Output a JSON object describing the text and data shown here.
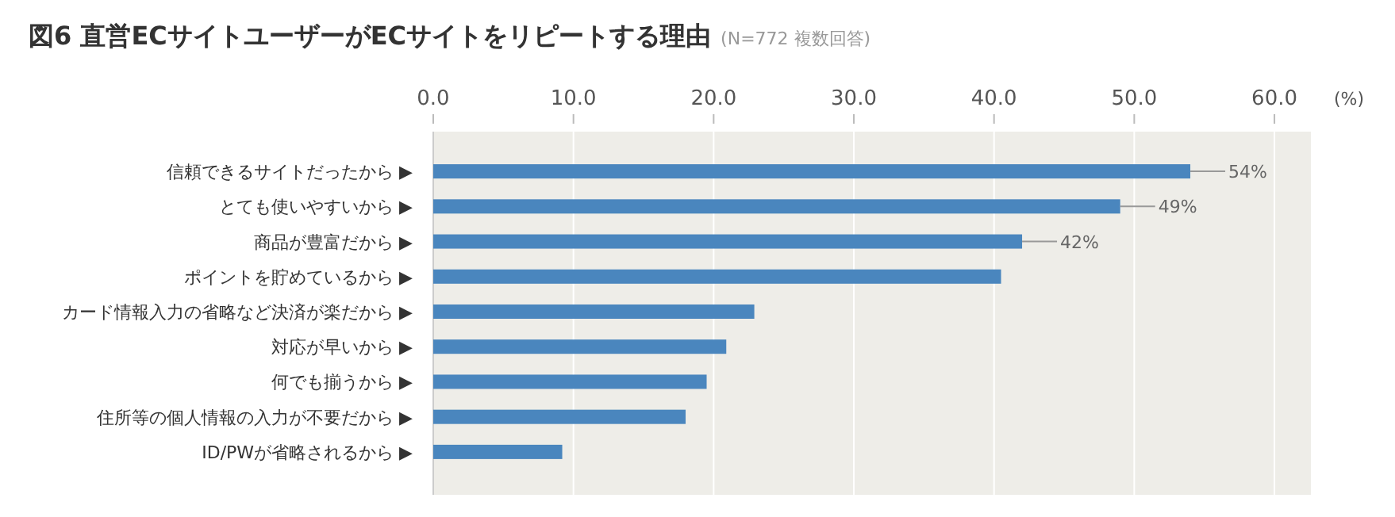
{
  "chart_data": {
    "type": "bar",
    "orientation": "horizontal",
    "title": "図6 直営ECサイトユーザーがECサイトをリピートする理由",
    "subtitle": "(N=772 複数回答)",
    "xlabel": "(%)",
    "categories": [
      "信頼できるサイトだったから ▶",
      "とても使いやすいから ▶",
      "商品が豊富だから ▶",
      "ポイントを貯めているから ▶",
      "カード情報入力の省略など決済が楽だから ▶",
      "対応が早いから ▶",
      "何でも揃うから ▶",
      "住所等の個人情報の入力が不要だから ▶",
      "ID/PWが省略されるから ▶"
    ],
    "values": [
      54,
      49,
      42,
      40.5,
      22.9,
      20.9,
      19.5,
      18.0,
      9.2
    ],
    "value_labels": [
      "54%",
      "49%",
      "42%",
      null,
      null,
      null,
      null,
      null,
      null
    ],
    "color": "#4a86be",
    "xlim": [
      0,
      62.6
    ],
    "xticks": [
      {
        "value": 0,
        "label": "0.0"
      },
      {
        "value": 10,
        "label": "10.0"
      },
      {
        "value": 20,
        "label": "20.0"
      },
      {
        "value": 30,
        "label": "30.0"
      },
      {
        "value": 40,
        "label": "40.0"
      },
      {
        "value": 50,
        "label": "50.0"
      },
      {
        "value": 60,
        "label": "60.0"
      }
    ],
    "grid": "x"
  }
}
